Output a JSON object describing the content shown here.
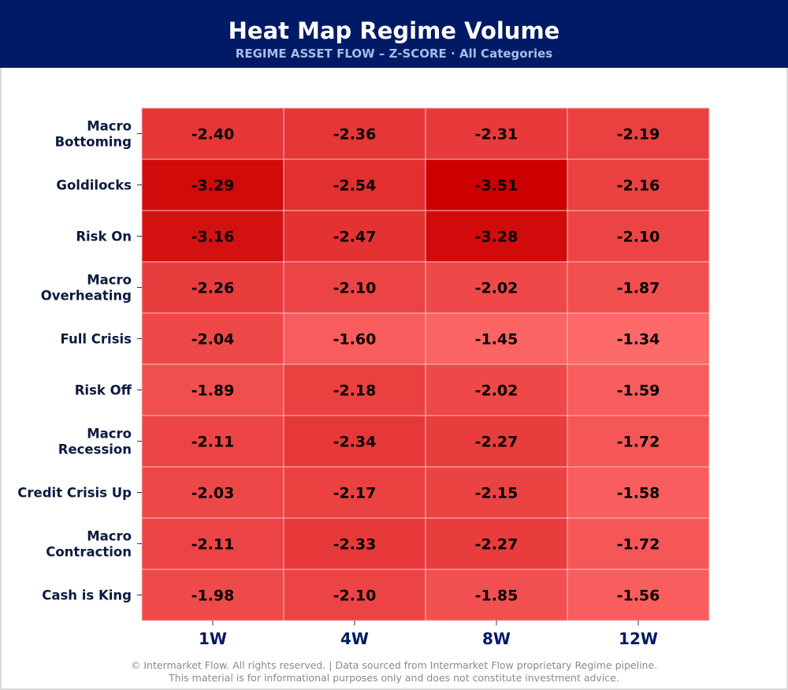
{
  "header": {
    "title": "Heat Map Regime Volume",
    "subtitle": "REGIME ASSET FLOW  –  Z-SCORE  ·  All Categories",
    "background": "#001a66"
  },
  "chart_data": {
    "type": "heatmap",
    "rows": [
      [
        "Macro",
        "Bottoming"
      ],
      [
        "Goldilocks"
      ],
      [
        "Risk On"
      ],
      [
        "Macro",
        "Overheating"
      ],
      [
        "Full Crisis"
      ],
      [
        "Risk Off"
      ],
      [
        "Macro",
        "Recession"
      ],
      [
        "Credit Crisis Up"
      ],
      [
        "Macro",
        "Contraction"
      ],
      [
        "Cash is King"
      ]
    ],
    "columns": [
      "1W",
      "4W",
      "8W",
      "12W"
    ],
    "values": [
      [
        -2.4,
        -2.36,
        -2.31,
        -2.19
      ],
      [
        -3.29,
        -2.54,
        -3.51,
        -2.16
      ],
      [
        -3.16,
        -2.47,
        -3.28,
        -2.1
      ],
      [
        -2.26,
        -2.1,
        -2.02,
        -1.87
      ],
      [
        -2.04,
        -1.6,
        -1.45,
        -1.34
      ],
      [
        -1.89,
        -2.18,
        -2.02,
        -1.59
      ],
      [
        -2.11,
        -2.34,
        -2.27,
        -1.72
      ],
      [
        -2.03,
        -2.17,
        -2.15,
        -1.58
      ],
      [
        -2.11,
        -2.33,
        -2.27,
        -1.72
      ],
      [
        -1.98,
        -2.1,
        -1.85,
        -1.56
      ]
    ],
    "colorscale": {
      "min": -3.5,
      "max": -1.3,
      "dark": "#cc0000",
      "light": "#ff6b6b"
    },
    "value_label_color": "#000000",
    "label_color": "#0d1a40"
  },
  "footer": {
    "line1": "© Intermarket Flow. All rights reserved.   |   Data sourced from Intermarket Flow proprietary Regime pipeline.",
    "line2": "This material is for informational purposes only and does not constitute investment advice."
  }
}
